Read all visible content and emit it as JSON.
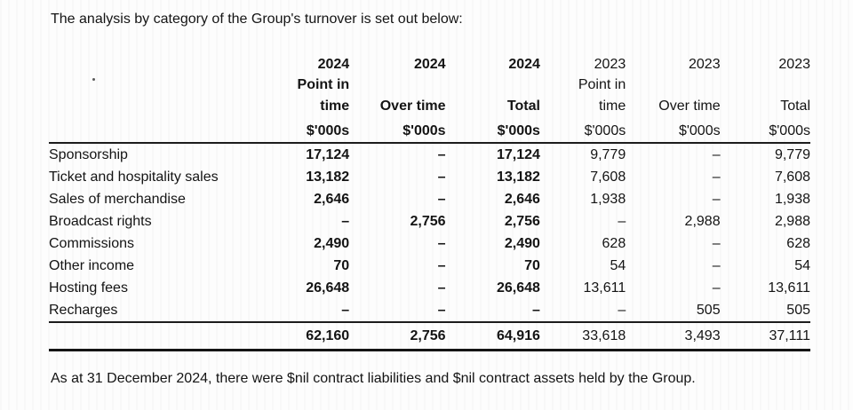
{
  "page": {
    "intro_text": "The analysis by category of the Group's turnover is set out below:",
    "footnote_text": "As at 31 December 2024, there were $nil contract liabilities and $nil contract assets held by the Group."
  },
  "colors": {
    "text": "#141414",
    "rule": "#1c1c1c",
    "background": "#fdfdfd"
  },
  "table": {
    "columns": {
      "years": [
        "2024",
        "2024",
        "2024",
        "2023",
        "2023",
        "2023"
      ],
      "sub1": [
        "Point in",
        "",
        "",
        "Point in",
        "",
        ""
      ],
      "sub2": [
        "time",
        "Over time",
        "Total",
        "time",
        "Over time",
        "Total"
      ],
      "units": [
        "$'000s",
        "$'000s",
        "$'000s",
        "$'000s",
        "$'000s",
        "$'000s"
      ],
      "emphasis": [
        true,
        true,
        true,
        false,
        false,
        false
      ]
    },
    "rows": [
      {
        "label": "Sponsorship",
        "values": [
          "17,124",
          "–",
          "17,124",
          "9,779",
          "–",
          "9,779"
        ]
      },
      {
        "label": "Ticket and hospitality sales",
        "values": [
          "13,182",
          "–",
          "13,182",
          "7,608",
          "–",
          "7,608"
        ]
      },
      {
        "label": "Sales of merchandise",
        "values": [
          "2,646",
          "–",
          "2,646",
          "1,938",
          "–",
          "1,938"
        ]
      },
      {
        "label": "Broadcast rights",
        "values": [
          "–",
          "2,756",
          "2,756",
          "–",
          "2,988",
          "2,988"
        ]
      },
      {
        "label": "Commissions",
        "values": [
          "2,490",
          "–",
          "2,490",
          "628",
          "–",
          "628"
        ]
      },
      {
        "label": "Other income",
        "values": [
          "70",
          "–",
          "70",
          "54",
          "–",
          "54"
        ]
      },
      {
        "label": "Hosting fees",
        "values": [
          "26,648",
          "–",
          "26,648",
          "13,611",
          "–",
          "13,611"
        ]
      },
      {
        "label": "Recharges",
        "values": [
          "–",
          "–",
          "–",
          "–",
          "505",
          "505"
        ]
      }
    ],
    "total": {
      "label": "",
      "values": [
        "62,160",
        "2,756",
        "64,916",
        "33,618",
        "3,493",
        "37,111"
      ]
    }
  }
}
